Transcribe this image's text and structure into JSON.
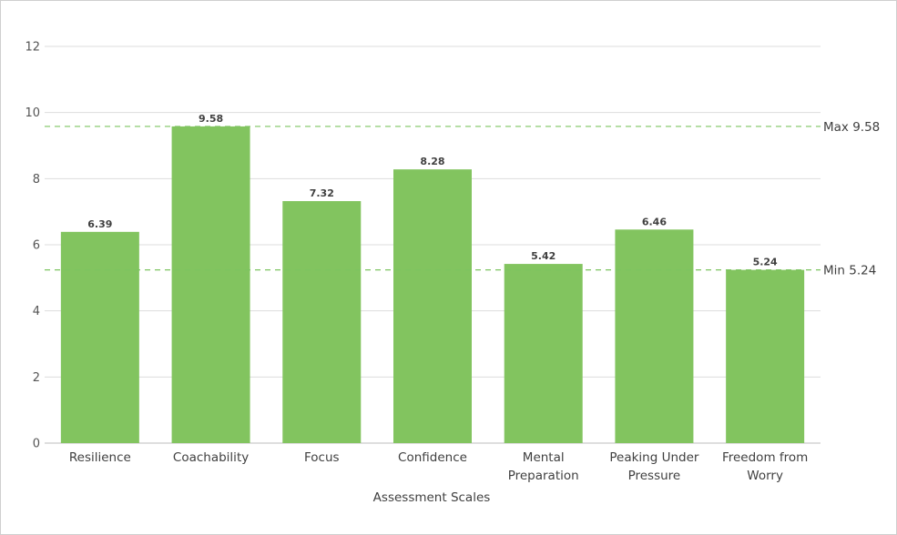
{
  "chart_data": {
    "type": "bar",
    "title": "",
    "xlabel": "Assessment Scales",
    "ylabel": "",
    "ylim": [
      0,
      12
    ],
    "yticks": [
      0,
      2,
      4,
      6,
      8,
      10,
      12
    ],
    "grid": true,
    "categories": [
      [
        "Resilience"
      ],
      [
        "Coachability"
      ],
      [
        "Focus"
      ],
      [
        "Confidence"
      ],
      [
        "Mental",
        "Preparation"
      ],
      [
        "Peaking Under",
        "Pressure"
      ],
      [
        "Freedom from",
        "Worry"
      ]
    ],
    "values": [
      6.39,
      9.58,
      7.32,
      8.28,
      5.42,
      6.46,
      5.24
    ],
    "value_labels": [
      "6.39",
      "9.58",
      "7.32",
      "8.28",
      "5.42",
      "6.46",
      "5.24"
    ],
    "bar_color": "#82c45f",
    "reference_lines": [
      {
        "label": "Max 9.58",
        "value": 9.58,
        "color": "#7cc460"
      },
      {
        "label": "Min 5.24",
        "value": 5.24,
        "color": "#7cc460"
      }
    ]
  }
}
